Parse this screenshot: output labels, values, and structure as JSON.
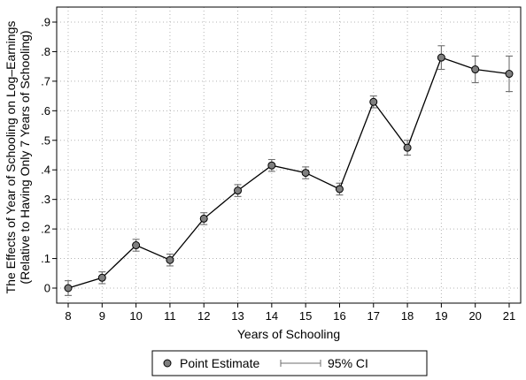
{
  "chart_data": {
    "type": "line",
    "xlabel": "Years of Schooling",
    "ylabel_lines": [
      "The Effects of Year of Schooling on Log–Earnings",
      "(Relative to Having Only 7 Years of Schooling)"
    ],
    "xlim": [
      8,
      21
    ],
    "ylim": [
      0,
      0.9
    ],
    "x_ticks": [
      8,
      9,
      10,
      11,
      12,
      13,
      14,
      15,
      16,
      17,
      18,
      19,
      20,
      21
    ],
    "x_tick_labels": [
      "8",
      "9",
      "10",
      "11",
      "12",
      "13",
      "14",
      "15",
      "16",
      "17",
      "18",
      "19",
      "20",
      "21"
    ],
    "y_ticks": [
      0,
      0.1,
      0.2,
      0.3,
      0.4,
      0.5,
      0.6,
      0.7,
      0.8,
      0.9
    ],
    "y_tick_labels": [
      "0",
      ".1",
      ".2",
      ".3",
      ".4",
      ".5",
      ".6",
      ".7",
      ".8",
      ".9"
    ],
    "grid": true,
    "legend_position": "bottom",
    "series": [
      {
        "name": "Point Estimate",
        "x": [
          8,
          9,
          10,
          11,
          12,
          13,
          14,
          15,
          16,
          17,
          18,
          19,
          20,
          21
        ],
        "y": [
          0.0,
          0.035,
          0.145,
          0.095,
          0.235,
          0.33,
          0.415,
          0.39,
          0.335,
          0.63,
          0.475,
          0.78,
          0.74,
          0.725
        ],
        "ci_lower": [
          -0.025,
          0.015,
          0.125,
          0.075,
          0.215,
          0.31,
          0.395,
          0.37,
          0.315,
          0.61,
          0.45,
          0.74,
          0.695,
          0.665
        ],
        "ci_upper": [
          0.025,
          0.055,
          0.165,
          0.115,
          0.255,
          0.35,
          0.435,
          0.41,
          0.355,
          0.65,
          0.5,
          0.82,
          0.785,
          0.785
        ]
      }
    ],
    "legend": [
      "Point Estimate",
      "95% CI"
    ],
    "colors": {
      "marker_fill": "#7f7f7f",
      "line": "#000000",
      "ci": "#6e6e6e",
      "grid": "#b4b4b4"
    }
  }
}
